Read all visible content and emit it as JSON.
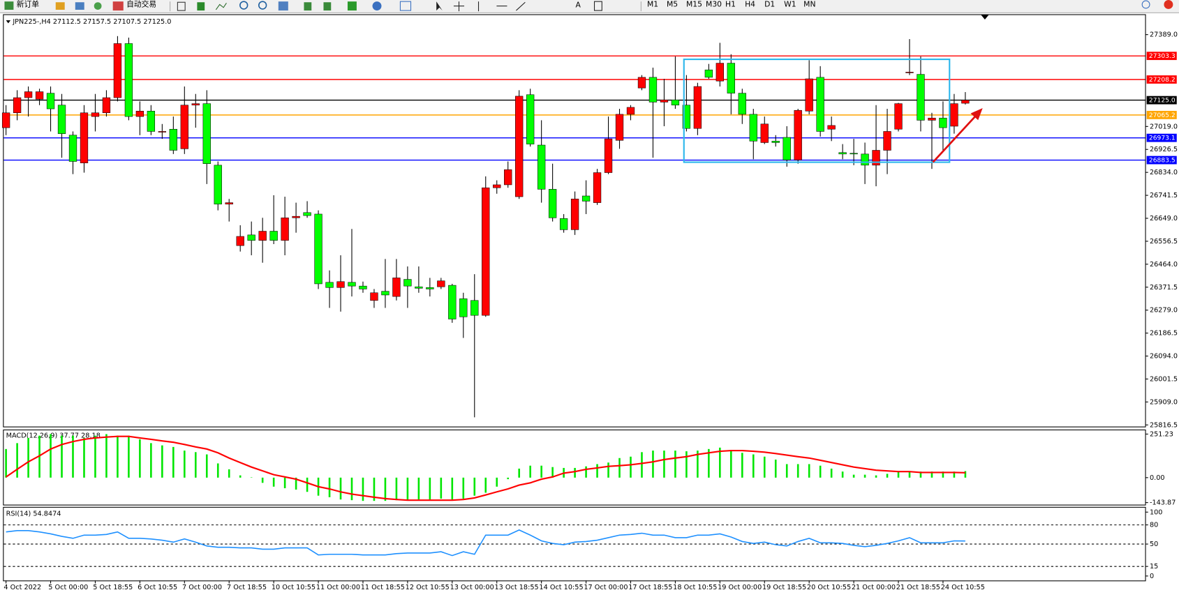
{
  "toolbar": {
    "new_order": "新订单",
    "auto_trading": "自动交易",
    "timeframes": [
      "M1",
      "M5",
      "M15",
      "M30",
      "H1",
      "H4",
      "D1",
      "W1",
      "MN"
    ]
  },
  "chart_data": [
    {
      "type": "candlestick",
      "title": "JPN225-,H4  27112.5 27157.5 27107.5 27125.0",
      "categories": [
        "4 Oct 2022",
        null,
        null,
        null,
        "5 Oct 00:00",
        null,
        null,
        null,
        "5 Oct 18:55",
        null,
        null,
        null,
        "6 Oct 10:55",
        null,
        null,
        null,
        "7 Oct 00:00",
        null,
        null,
        null,
        "7 Oct 18:55",
        null,
        null,
        null,
        "10 Oct 10:55",
        null,
        null,
        null,
        "11 Oct 00:00",
        null,
        null,
        null,
        "11 Oct 18:55",
        null,
        null,
        null,
        "12 Oct 10:55",
        null,
        null,
        null,
        "13 Oct 00:00",
        null,
        null,
        null,
        "13 Oct 18:55",
        null,
        null,
        null,
        "14 Oct 10:55",
        null,
        null,
        null,
        "17 Oct 00:00",
        null,
        null,
        null,
        "17 Oct 18:55",
        null,
        null,
        null,
        "18 Oct 10:55",
        null,
        null,
        null,
        "19 Oct 00:00",
        null,
        null,
        null,
        "19 Oct 18:55",
        null,
        null,
        null,
        "20 Oct 10:55",
        null,
        null,
        null,
        "21 Oct 00:00",
        null,
        null,
        null,
        "21 Oct 18:55",
        null,
        null,
        null,
        "24 Oct 10:55",
        null,
        null
      ],
      "open": [
        27014,
        27074,
        27135,
        27129,
        27153,
        27105,
        26984,
        26872,
        27059,
        27074,
        27135,
        27353,
        27059,
        27081,
        26996,
        27008,
        26929,
        27105,
        27111,
        26863,
        26706,
        26539,
        26582,
        26560,
        26597,
        26560,
        26651,
        26672,
        26666,
        26391,
        26370,
        26391,
        26376,
        26318,
        26355,
        26334,
        26403,
        26373,
        26370,
        26373,
        26379,
        26325,
        26318,
        26258,
        26772,
        26784,
        26736,
        27147,
        26944,
        26766,
        26648,
        26603,
        26739,
        26712,
        26833,
        26963,
        27068,
        27174,
        27217,
        27117,
        27126,
        27105,
        27011,
        27247,
        27202,
        27274,
        27153,
        27068,
        26954,
        26960,
        26975,
        26884,
        27081,
        27217,
        27008,
        26914,
        26911,
        26908,
        26863,
        26923,
        27008,
        27235,
        27229,
        27044,
        27053,
        27020,
        27112.5
      ],
      "high": [
        27105,
        27165,
        27180,
        27171,
        27180,
        27150,
        26999,
        27105,
        27150,
        27165,
        27383,
        27377,
        27120,
        27105,
        27029,
        27059,
        27180,
        27150,
        27165,
        26878,
        26727,
        26621,
        26636,
        26651,
        26742,
        26736,
        26712,
        26718,
        26681,
        26439,
        26500,
        26606,
        26394,
        26364,
        26485,
        26485,
        26455,
        26455,
        26409,
        26409,
        26385,
        26349,
        26424,
        26818,
        26802,
        26878,
        27165,
        27171,
        27044,
        26869,
        26666,
        26757,
        26802,
        26848,
        27059,
        27090,
        27105,
        27226,
        27256,
        27211,
        27301,
        27226,
        27195,
        27271,
        27356,
        27310,
        27171,
        27090,
        27059,
        26984,
        27020,
        27090,
        27286,
        27262,
        27059,
        26948,
        26969,
        26954,
        27105,
        27090,
        27114,
        27371,
        27301,
        27074,
        27120,
        27150,
        27157.5
      ],
      "low": [
        26984,
        27044,
        27059,
        27105,
        26999,
        26893,
        26827,
        26833,
        26999,
        27059,
        27120,
        27044,
        26984,
        26984,
        26969,
        26908,
        26908,
        27014,
        26787,
        26681,
        26636,
        26515,
        26500,
        26470,
        26545,
        26500,
        26591,
        26651,
        26364,
        26288,
        26273,
        26334,
        26349,
        26288,
        26288,
        26318,
        26288,
        26349,
        26334,
        26364,
        26228,
        26167,
        25847,
        26252,
        26748,
        26772,
        26727,
        26938,
        26712,
        26636,
        26591,
        26582,
        26666,
        26703,
        26827,
        26929,
        27044,
        27165,
        26893,
        27020,
        27090,
        26999,
        26984,
        27211,
        27180,
        27068,
        27029,
        26887,
        26948,
        26938,
        26857,
        26869,
        27068,
        26978,
        26960,
        26887,
        26863,
        26787,
        26778,
        26827,
        26999,
        27226,
        26999,
        26848,
        26923,
        26990,
        27107.5
      ],
      "close": [
        27074,
        27135,
        27159,
        27159,
        27090,
        26990,
        26878,
        27074,
        27074,
        27135,
        27353,
        27059,
        27081,
        26999,
        26999,
        26923,
        27105,
        27111,
        26869,
        26706,
        26712,
        26576,
        26560,
        26597,
        26560,
        26651,
        26657,
        26660,
        26385,
        26370,
        26394,
        26376,
        26364,
        26349,
        26340,
        26409,
        26376,
        26367,
        26364,
        26397,
        26243,
        26252,
        26258,
        26772,
        26784,
        26845,
        27141,
        26948,
        26766,
        26651,
        26603,
        26727,
        26718,
        26833,
        26969,
        27068,
        27096,
        27217,
        27117,
        27126,
        27105,
        27011,
        27180,
        27217,
        27274,
        27153,
        27068,
        26960,
        27029,
        26954,
        26884,
        27084,
        27211,
        26999,
        27023,
        26908,
        26908,
        26863,
        26923,
        26999,
        27111,
        27238,
        27044,
        27053,
        27014,
        27111,
        27125.0
      ],
      "up_color": "#ff0000",
      "down_color": "#00ff00",
      "ylim": [
        25810,
        27468
      ],
      "yticks": [
        {
          "value": 27389,
          "label": "27389.0"
        },
        {
          "value": 27019,
          "label": "27019.0"
        },
        26926.5,
        {
          "value": 26834,
          "label": "26834.0"
        },
        26741.5,
        {
          "value": 26649,
          "label": "26649.0"
        },
        26556.5,
        {
          "value": 26464,
          "label": "26464.0"
        },
        26371.5,
        {
          "value": 26279,
          "label": "26279.0"
        },
        26186.5,
        {
          "value": 26094,
          "label": "26094.0"
        },
        26001.5,
        {
          "value": 25909,
          "label": "25909.0"
        },
        25816.5
      ],
      "levels": [
        {
          "value": 27303.3,
          "color": "#ff0000"
        },
        {
          "value": 27208.2,
          "color": "#ff0000"
        },
        {
          "value": {
            "value": 27125,
            "label": "27125.0"
          },
          "color": "#000000"
        },
        {
          "value": 27065.2,
          "color": "#ffa500"
        },
        {
          "value": 26973.1,
          "color": "#0000ff"
        },
        {
          "value": 26883.5,
          "color": "#0000ff"
        }
      ]
    },
    {
      "type": "macd",
      "title": "MACD(12,26,9) 37.77 28.18",
      "histogram": {
        "color": "#00e600",
        "values": [
          165,
          199,
          229,
          242,
          251,
          242,
          242,
          229,
          242,
          251,
          242,
          242,
          221,
          199,
          186,
          177,
          156,
          147,
          134,
          82,
          48,
          13,
          2,
          -30,
          -52,
          -61,
          -69,
          -82,
          -104,
          -113,
          -126,
          -130,
          -134,
          -134,
          -134,
          -130,
          -130,
          -126,
          -126,
          -121,
          -126,
          -121,
          -104,
          -87,
          -52,
          -9,
          52,
          69,
          69,
          61,
          56,
          56,
          65,
          78,
          87,
          113,
          121,
          147,
          156,
          156,
          156,
          152,
          156,
          165,
          173,
          156,
          143,
          134,
          121,
          104,
          78,
          78,
          78,
          69,
          52,
          35,
          17,
          17,
          13,
          22,
          35,
          35,
          35,
          35,
          35,
          35,
          37.77
        ]
      },
      "signal": {
        "color": "#ff0000",
        "values": [
          4,
          48,
          91,
          126,
          165,
          191,
          208,
          221,
          229,
          234,
          238,
          238,
          229,
          221,
          212,
          204,
          191,
          177,
          165,
          143,
          113,
          87,
          61,
          39,
          17,
          4,
          -9,
          -30,
          -52,
          -65,
          -82,
          -95,
          -104,
          -113,
          -121,
          -126,
          -130,
          -130,
          -130,
          -130,
          -130,
          -126,
          -117,
          -100,
          -82,
          -65,
          -43,
          -30,
          -9,
          4,
          26,
          35,
          48,
          56,
          65,
          69,
          74,
          82,
          91,
          104,
          113,
          121,
          134,
          143,
          152,
          156,
          156,
          152,
          147,
          139,
          130,
          121,
          113,
          100,
          87,
          74,
          61,
          52,
          43,
          39,
          35,
          35,
          30,
          30,
          30,
          30,
          28.18
        ]
      },
      "ylim": [
        -160,
        273
      ],
      "yticks": [
        251.23,
        {
          "value": 0,
          "label": "0.00"
        },
        -143.87
      ]
    },
    {
      "type": "rsi",
      "title": "RSI(14) 54.8474",
      "color": "#1e90ff",
      "values": [
        69,
        71,
        71,
        69,
        66,
        62,
        59,
        64,
        64,
        65,
        69,
        59,
        59,
        58,
        56,
        53,
        58,
        53,
        47,
        45,
        45,
        44,
        44,
        42,
        42,
        44,
        44,
        44,
        33,
        34,
        34,
        34,
        33,
        33,
        33,
        35,
        36,
        36,
        36,
        38,
        32,
        38,
        34,
        64,
        64,
        64,
        72,
        64,
        55,
        51,
        49,
        53,
        54,
        56,
        60,
        64,
        65,
        67,
        64,
        64,
        60,
        60,
        64,
        64,
        66,
        61,
        54,
        51,
        53,
        49,
        47,
        54,
        59,
        52,
        52,
        51,
        48,
        46,
        48,
        51,
        55,
        60,
        52,
        52,
        52,
        55,
        54.8474
      ],
      "ylim": [
        -7,
        107
      ],
      "yticks": [
        100,
        80,
        50,
        15,
        0
      ],
      "dashed_levels": [
        80,
        50,
        15
      ]
    }
  ]
}
